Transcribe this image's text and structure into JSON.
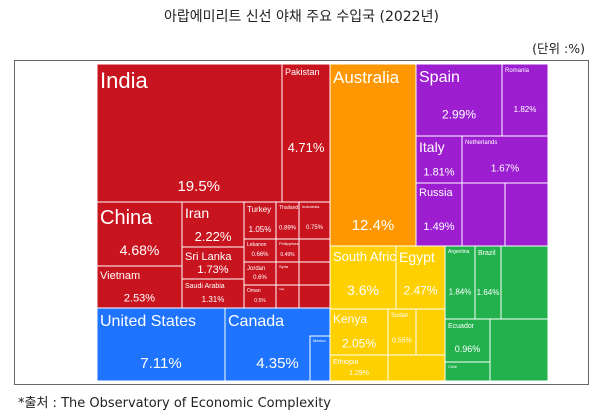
{
  "page": {
    "title": "아랍에미리트 신선 야채 주요 수입국 (2022년)",
    "unit": "(단위 :%)",
    "source": "*출처 : The Observatory of Economic Complexity"
  },
  "colors": {
    "asia": "#c8141e",
    "america": "#1e74ff",
    "oceania": "#ff9800",
    "europe": "#9c1ed0",
    "africa": "#ffd000",
    "south_america": "#22b14c"
  },
  "chart_data": {
    "type": "treemap",
    "title": "아랍에미리트 신선 야채 주요 수입국 (2022년)",
    "unit": "%",
    "items": [
      {
        "name": "India",
        "value": 19.5,
        "region": "asia"
      },
      {
        "name": "China",
        "value": 4.68,
        "region": "asia"
      },
      {
        "name": "Pakistan",
        "value": 4.71,
        "region": "asia"
      },
      {
        "name": "Iran",
        "value": 2.22,
        "region": "asia"
      },
      {
        "name": "Vietnam",
        "value": 2.53,
        "region": "asia"
      },
      {
        "name": "Sri Lanka",
        "value": 1.73,
        "region": "asia"
      },
      {
        "name": "Saudi Arabia",
        "value": 1.31,
        "region": "asia"
      },
      {
        "name": "Turkey",
        "value": 1.05,
        "region": "asia"
      },
      {
        "name": "Thailand",
        "value": 0.89,
        "region": "asia"
      },
      {
        "name": "Indonesia",
        "value": 0.75,
        "region": "asia"
      },
      {
        "name": "Lebanon",
        "value": 0.66,
        "region": "asia"
      },
      {
        "name": "Philippines",
        "value": 0.49,
        "region": "asia"
      },
      {
        "name": "Jordan",
        "value": 0.6,
        "region": "asia"
      },
      {
        "name": "Syria",
        "value": null,
        "region": "asia"
      },
      {
        "name": "Oman",
        "value": 0.5,
        "region": "asia"
      },
      {
        "name": "Iraq",
        "value": null,
        "region": "asia"
      },
      {
        "name": "United States",
        "value": 7.11,
        "region": "america"
      },
      {
        "name": "Canada",
        "value": 4.35,
        "region": "america"
      },
      {
        "name": "Mexico",
        "value": null,
        "region": "america"
      },
      {
        "name": "Australia",
        "value": 12.4,
        "region": "oceania"
      },
      {
        "name": "Spain",
        "value": 2.99,
        "region": "europe"
      },
      {
        "name": "Romania",
        "value": 1.82,
        "region": "europe"
      },
      {
        "name": "Italy",
        "value": 1.81,
        "region": "europe"
      },
      {
        "name": "Netherlands",
        "value": 1.67,
        "region": "europe"
      },
      {
        "name": "Russia",
        "value": 1.49,
        "region": "europe"
      },
      {
        "name": "South Africa",
        "value": 3.6,
        "region": "africa"
      },
      {
        "name": "Egypt",
        "value": 2.47,
        "region": "africa"
      },
      {
        "name": "Kenya",
        "value": 2.05,
        "region": "africa"
      },
      {
        "name": "Ethiopia",
        "value": 1.29,
        "region": "africa"
      },
      {
        "name": "Sudan",
        "value": 0.55,
        "region": "africa"
      },
      {
        "name": "Argentina",
        "value": 1.84,
        "region": "south_america"
      },
      {
        "name": "Brazil",
        "value": 1.64,
        "region": "south_america"
      },
      {
        "name": "Ecuador",
        "value": 0.96,
        "region": "south_america"
      },
      {
        "name": "Chile",
        "value": null,
        "region": "south_america"
      }
    ]
  }
}
